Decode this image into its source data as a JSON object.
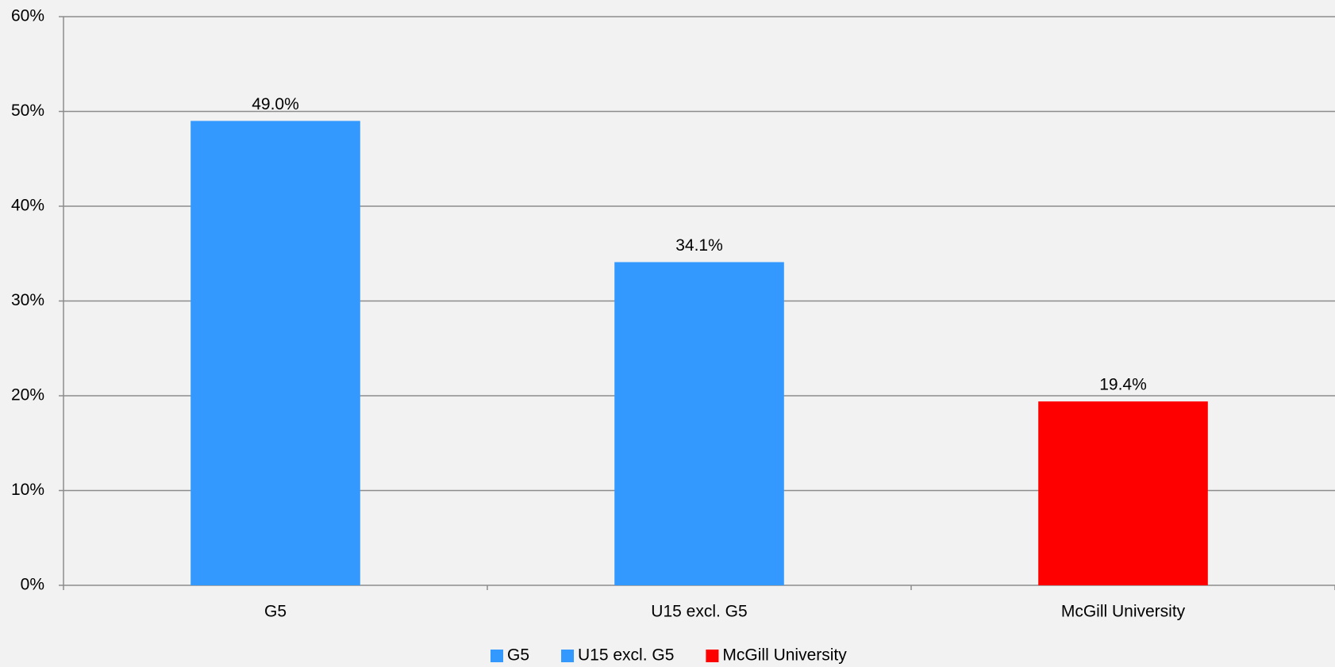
{
  "chart_data": {
    "type": "bar",
    "categories": [
      "G5",
      "U15 excl. G5",
      "McGill University"
    ],
    "values": [
      49.0,
      34.1,
      19.4
    ],
    "value_labels": [
      "49.0%",
      "34.1%",
      "19.4%"
    ],
    "colors": [
      "#3399ff",
      "#3399ff",
      "#ff0000"
    ],
    "ylim": [
      0,
      60
    ],
    "yticks": [
      {
        "value": 0,
        "label": "0%"
      },
      {
        "value": 10,
        "label": "10%"
      },
      {
        "value": 20,
        "label": "20%"
      },
      {
        "value": 30,
        "label": "30%"
      },
      {
        "value": 40,
        "label": "40%"
      },
      {
        "value": 50,
        "label": "50%"
      },
      {
        "value": 60,
        "label": "60%"
      }
    ],
    "grid": true
  }
}
